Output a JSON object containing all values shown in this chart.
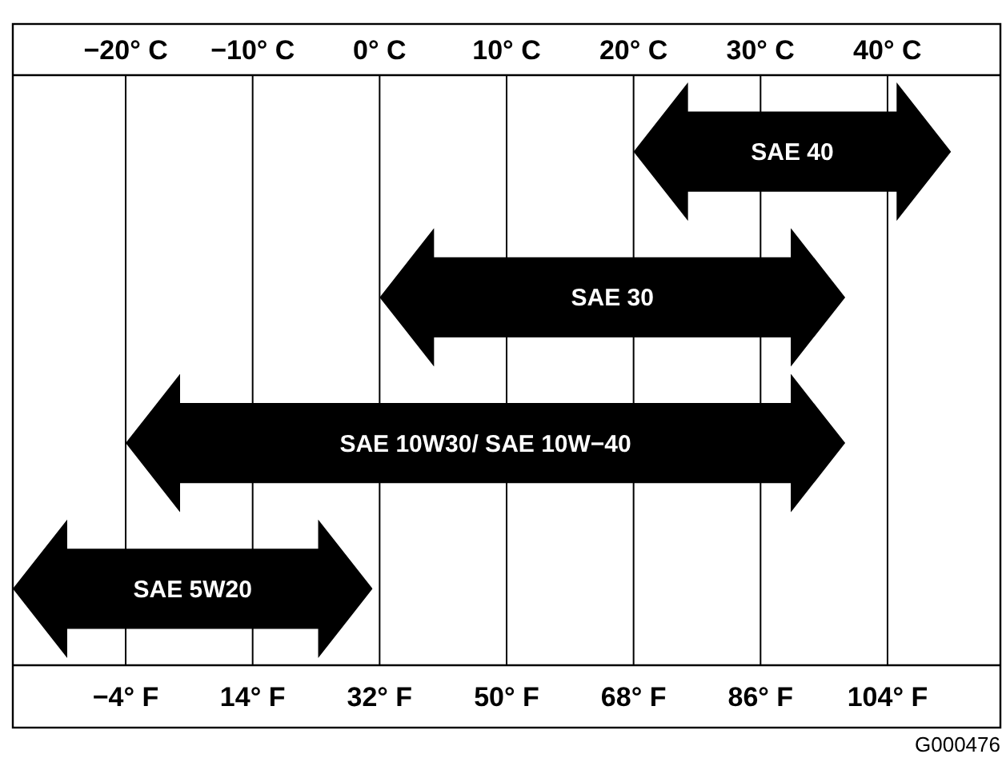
{
  "chart_data": {
    "type": "bar",
    "orientation": "horizontal",
    "categories": [
      "SAE 40",
      "SAE 30",
      "SAE 10W30/ SAE 10W−40",
      "SAE 5W20"
    ],
    "base": [
      68,
      32,
      -4,
      -20
    ],
    "values": [
      45,
      66,
      102,
      51
    ],
    "color": "#000000",
    "xlim": [
      -20,
      120
    ],
    "xticks": [
      {
        "value": -4,
        "label": "−4° F"
      },
      {
        "value": 14,
        "label": "14° F"
      },
      {
        "value": 32,
        "label": "32° F"
      },
      {
        "value": 50,
        "label": "50° F"
      },
      {
        "value": 68,
        "label": "68° F"
      },
      {
        "value": 86,
        "label": "86° F"
      },
      {
        "value": 104,
        "label": "104° F"
      }
    ],
    "x2lim": [
      -28.9,
      48.9
    ],
    "x2ticks": [
      {
        "value": -20,
        "label": "−20° C"
      },
      {
        "value": -10,
        "label": "−10° C"
      },
      {
        "value": 0,
        "label": "0° C"
      },
      {
        "value": 10,
        "label": "10° C"
      },
      {
        "value": 20,
        "label": "20° C"
      },
      {
        "value": 30,
        "label": "30° C"
      },
      {
        "value": 40,
        "label": "40° C"
      }
    ],
    "grid": "x",
    "annotations": [
      "G000476"
    ]
  }
}
